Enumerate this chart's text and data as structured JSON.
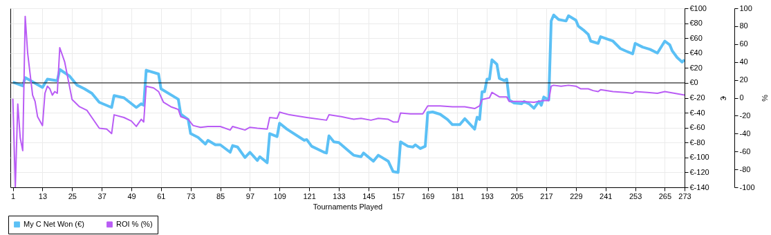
{
  "chart_data": {
    "type": "line",
    "xlabel": "Tournaments Played",
    "ylabel": "€",
    "y2label": "%",
    "xlim": [
      0,
      273
    ],
    "xticks": [
      1,
      13,
      25,
      37,
      49,
      61,
      73,
      85,
      97,
      109,
      121,
      133,
      145,
      157,
      169,
      181,
      193,
      205,
      217,
      229,
      241,
      253,
      265,
      273
    ],
    "ylim": [
      -140,
      100
    ],
    "yticks": [
      {
        "value": 100,
        "label": "€100"
      },
      {
        "value": 80,
        "label": "€80"
      },
      {
        "value": 60,
        "label": "€60"
      },
      {
        "value": 40,
        "label": "€40"
      },
      {
        "value": 20,
        "label": "€20"
      },
      {
        "value": 0,
        "label": "€0"
      },
      {
        "value": -20,
        "label": "€-20"
      },
      {
        "value": -40,
        "label": "€-40"
      },
      {
        "value": -60,
        "label": "€-60"
      },
      {
        "value": -80,
        "label": "€-80"
      },
      {
        "value": -100,
        "label": "€-100"
      },
      {
        "value": -120,
        "label": "€-120"
      },
      {
        "value": -140,
        "label": "€-140"
      }
    ],
    "y2lim": [
      -100,
      100
    ],
    "y2ticks": [
      100,
      80,
      60,
      40,
      20,
      0,
      -20,
      -40,
      -60,
      -80,
      -100
    ],
    "grid": true,
    "legend": "bottom left",
    "marker": "none",
    "line_style": "solid",
    "ref_lines": [
      {
        "axis": "y",
        "value": 0,
        "color": "#000000"
      }
    ],
    "series": [
      {
        "name": "My C Net Won (€)",
        "color": "#5bc0f5",
        "x": [
          1,
          5,
          6,
          13,
          15,
          19,
          20,
          24,
          27,
          30,
          33,
          36,
          41,
          42,
          46,
          51,
          53,
          54,
          55,
          60,
          61,
          68,
          69,
          72,
          73,
          76,
          79,
          80,
          83,
          85,
          89,
          90,
          92,
          95,
          97,
          100,
          101,
          104,
          105,
          108,
          109,
          112,
          119,
          120,
          122,
          127,
          128,
          129,
          131,
          133,
          139,
          142,
          143,
          147,
          149,
          153,
          155,
          157,
          158,
          161,
          163,
          164,
          166,
          168,
          169,
          171,
          174,
          177,
          179,
          182,
          184,
          188,
          189,
          190,
          191,
          192,
          193,
          194,
          195,
          197,
          198,
          200,
          201,
          202,
          204,
          207,
          208,
          210,
          212,
          214,
          215,
          216,
          218,
          219,
          220,
          222,
          225,
          226,
          229,
          230,
          232,
          234,
          235,
          238,
          239,
          244,
          247,
          249,
          252,
          253,
          256,
          259,
          262,
          265,
          267,
          268,
          270,
          272,
          273
        ],
        "values": [
          1,
          -4,
          7,
          -6,
          5,
          3,
          18,
          9,
          -3,
          -8,
          -14,
          -26,
          -33,
          -17,
          -20,
          -33,
          -28,
          -30,
          17,
          12,
          -8,
          -22,
          -42,
          -49,
          -68,
          -73,
          -82,
          -77,
          -83,
          -83,
          -93,
          -84,
          -86,
          -100,
          -93,
          -104,
          -99,
          -107,
          -68,
          -72,
          -54,
          -62,
          -77,
          -76,
          -85,
          -93,
          -94,
          -71,
          -79,
          -80,
          -97,
          -99,
          -94,
          -105,
          -97,
          -105,
          -119,
          -120,
          -79,
          -85,
          -86,
          -83,
          -88,
          -85,
          -40,
          -39,
          -42,
          -49,
          -56,
          -56,
          -48,
          -62,
          -46,
          -49,
          -12,
          -12,
          5,
          5,
          31,
          25,
          6,
          3,
          5,
          -23,
          -27,
          -28,
          -25,
          -28,
          -34,
          -25,
          -30,
          -19,
          -23,
          83,
          91,
          85,
          83,
          90,
          84,
          76,
          71,
          65,
          56,
          53,
          62,
          56,
          46,
          43,
          39,
          53,
          48,
          45,
          40,
          56,
          51,
          43,
          34,
          28,
          31
        ]
      },
      {
        "name": "ROI % (%)",
        "color": "#b95cf5",
        "axis": "y2",
        "x": [
          1,
          2,
          3,
          4,
          5,
          6,
          7,
          9,
          10,
          11,
          13,
          14,
          15,
          16,
          17,
          18,
          19,
          20,
          22,
          25,
          28,
          31,
          33,
          36,
          39,
          41,
          42,
          46,
          49,
          51,
          53,
          54,
          55,
          58,
          60,
          62,
          65,
          68,
          69,
          72,
          74,
          77,
          80,
          85,
          89,
          90,
          95,
          97,
          100,
          104,
          105,
          108,
          109,
          113,
          120,
          128,
          129,
          134,
          139,
          142,
          146,
          149,
          153,
          155,
          157,
          158,
          162,
          167,
          169,
          174,
          179,
          184,
          188,
          190,
          191,
          194,
          195,
          198,
          201,
          202,
          207,
          212,
          216,
          218,
          219,
          220,
          223,
          226,
          229,
          231,
          234,
          236,
          238,
          239,
          244,
          249,
          252,
          253,
          258,
          262,
          265,
          269,
          273
        ],
        "values": [
          -1,
          -100,
          -7,
          -45,
          -59,
          91,
          50,
          3,
          -4,
          -21,
          -31,
          5,
          13,
          10,
          3,
          7,
          5,
          56,
          40,
          -2,
          -10,
          -14,
          -22,
          -34,
          -35,
          -40,
          -19,
          -22,
          -26,
          -32,
          -24,
          -27,
          13,
          11,
          7,
          -5,
          -10,
          -13,
          -21,
          -24,
          -31,
          -33,
          -32,
          -32,
          -36,
          -32,
          -36,
          -33,
          -34,
          -35,
          -22,
          -23,
          -16,
          -19,
          -22,
          -25,
          -19,
          -21,
          -24,
          -23,
          -25,
          -23,
          -24,
          -27,
          -27,
          -17,
          -18,
          -18,
          -9,
          -9,
          -10,
          -10,
          -12,
          -9,
          -2,
          0,
          6,
          1,
          1,
          -4,
          -4,
          -5,
          -3,
          -3,
          13,
          14,
          13,
          14,
          13,
          10,
          10,
          8,
          7,
          9,
          7,
          6,
          5,
          7,
          6,
          5,
          7,
          5,
          3
        ]
      }
    ]
  }
}
